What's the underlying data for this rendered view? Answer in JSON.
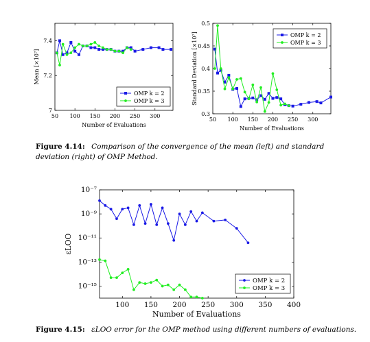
{
  "figure1": {
    "label": "Figure 4.14:",
    "caption": "Comparison of the convergence of the mean (left) and standard deviation (right) of OMP Method."
  },
  "figure2": {
    "label": "Figure 4.15:",
    "caption": "εLOO error for the OMP method using different numbers of evaluations."
  },
  "colors": {
    "series1": "#1a1ae6",
    "series2": "#22ee22"
  },
  "chart_data": [
    {
      "id": "mean",
      "type": "line",
      "xlabel": "Number of Evaluations",
      "ylabel": "Mean [×10⁷]",
      "xlim": [
        50,
        345
      ],
      "ylim": [
        7.0,
        7.5
      ],
      "xticks": [
        50,
        100,
        150,
        200,
        250,
        300
      ],
      "yticks": [
        7.0,
        7.2,
        7.4
      ],
      "ytick_labels": [
        "7",
        "7.2",
        "7.4"
      ],
      "legend": "bottom-right",
      "series": [
        {
          "name": "OMP k = 2",
          "marker": "square",
          "x": [
            55,
            62,
            70,
            80,
            90,
            100,
            110,
            120,
            130,
            140,
            150,
            160,
            170,
            180,
            190,
            200,
            210,
            220,
            230,
            240,
            250,
            270,
            290,
            310,
            320,
            340
          ],
          "y": [
            7.33,
            7.4,
            7.32,
            7.33,
            7.39,
            7.34,
            7.32,
            7.37,
            7.37,
            7.36,
            7.36,
            7.35,
            7.35,
            7.35,
            7.35,
            7.34,
            7.34,
            7.34,
            7.36,
            7.36,
            7.34,
            7.35,
            7.36,
            7.36,
            7.35,
            7.35
          ]
        },
        {
          "name": "OMP k = 3",
          "marker": "circle",
          "x": [
            55,
            62,
            70,
            80,
            90,
            100,
            110,
            120,
            130,
            140,
            150,
            160,
            170,
            180,
            190,
            200,
            210,
            220,
            230,
            240
          ],
          "y": [
            7.33,
            7.26,
            7.38,
            7.32,
            7.33,
            7.36,
            7.38,
            7.37,
            7.37,
            7.38,
            7.39,
            7.37,
            7.36,
            7.35,
            7.35,
            7.34,
            7.34,
            7.33,
            7.36,
            7.35
          ]
        }
      ]
    },
    {
      "id": "std",
      "type": "line",
      "xlabel": "Number of Evaluations",
      "ylabel": "Standard Deviation [×10⁷]",
      "xlim": [
        50,
        345
      ],
      "ylim": [
        0.3,
        0.5
      ],
      "xticks": [
        50,
        100,
        150,
        200,
        250,
        300
      ],
      "yticks": [
        0.3,
        0.35,
        0.4,
        0.45,
        0.5
      ],
      "ytick_labels": [
        "0.3",
        "0.35",
        "0.4",
        "0.45",
        "0.5"
      ],
      "legend": "top-right",
      "series": [
        {
          "name": "OMP k = 2",
          "marker": "square",
          "x": [
            55,
            62,
            70,
            80,
            90,
            100,
            110,
            120,
            130,
            140,
            150,
            160,
            170,
            180,
            190,
            200,
            210,
            220,
            230,
            240,
            250,
            270,
            290,
            310,
            320,
            345
          ],
          "y": [
            0.443,
            0.39,
            0.396,
            0.37,
            0.385,
            0.354,
            0.356,
            0.316,
            0.333,
            0.334,
            0.335,
            0.331,
            0.34,
            0.332,
            0.345,
            0.334,
            0.336,
            0.333,
            0.32,
            0.318,
            0.317,
            0.321,
            0.325,
            0.327,
            0.324,
            0.337
          ]
        },
        {
          "name": "OMP k = 3",
          "marker": "circle",
          "x": [
            55,
            62,
            70,
            80,
            90,
            100,
            110,
            120,
            130,
            140,
            150,
            160,
            170,
            180,
            190,
            200,
            210,
            220,
            230,
            240
          ],
          "y": [
            0.4,
            0.495,
            0.4,
            0.355,
            0.38,
            0.355,
            0.376,
            0.378,
            0.348,
            0.333,
            0.364,
            0.326,
            0.358,
            0.305,
            0.325,
            0.389,
            0.353,
            0.319,
            0.322,
            0.318
          ]
        }
      ]
    },
    {
      "id": "loo",
      "type": "line",
      "xlabel": "Number of Evaluations",
      "ylabel": "εLOO",
      "yscale": "log",
      "xlim": [
        60,
        400
      ],
      "ylim_exp": [
        -16,
        -7
      ],
      "xticks": [
        100,
        150,
        200,
        250,
        300,
        350,
        400
      ],
      "yticks_exp": [
        -15,
        -13,
        -11,
        -9,
        -7
      ],
      "ytick_labels": [
        "10⁻¹⁵",
        "10⁻¹³",
        "10⁻¹¹",
        "10⁻⁹",
        "10⁻⁷"
      ],
      "legend": "bottom-right",
      "series": [
        {
          "name": "OMP k = 2",
          "marker": "circle",
          "x": [
            60,
            70,
            80,
            90,
            100,
            110,
            120,
            130,
            140,
            150,
            160,
            170,
            180,
            190,
            200,
            210,
            220,
            230,
            240,
            260,
            280,
            300,
            320
          ],
          "y_exp": [
            -7.9,
            -8.3,
            -8.6,
            -9.4,
            -8.6,
            -8.5,
            -9.9,
            -8.3,
            -9.8,
            -8.2,
            -9.9,
            -8.5,
            -9.8,
            -11.2,
            -9.0,
            -9.9,
            -8.8,
            -9.6,
            -8.9,
            -9.6,
            -9.5,
            -10.2,
            -11.4
          ]
        },
        {
          "name": "OMP k = 3",
          "marker": "circle",
          "x": [
            60,
            70,
            80,
            90,
            100,
            110,
            120,
            130,
            140,
            150,
            160,
            170,
            180,
            190,
            200,
            210,
            220,
            230,
            240
          ],
          "y_exp": [
            -12.8,
            -12.9,
            -14.3,
            -14.3,
            -13.9,
            -13.6,
            -15.3,
            -14.7,
            -14.8,
            -14.7,
            -14.5,
            -15.0,
            -14.9,
            -15.3,
            -14.9,
            -15.3,
            -15.9,
            -15.9,
            -16.0
          ]
        }
      ]
    }
  ]
}
